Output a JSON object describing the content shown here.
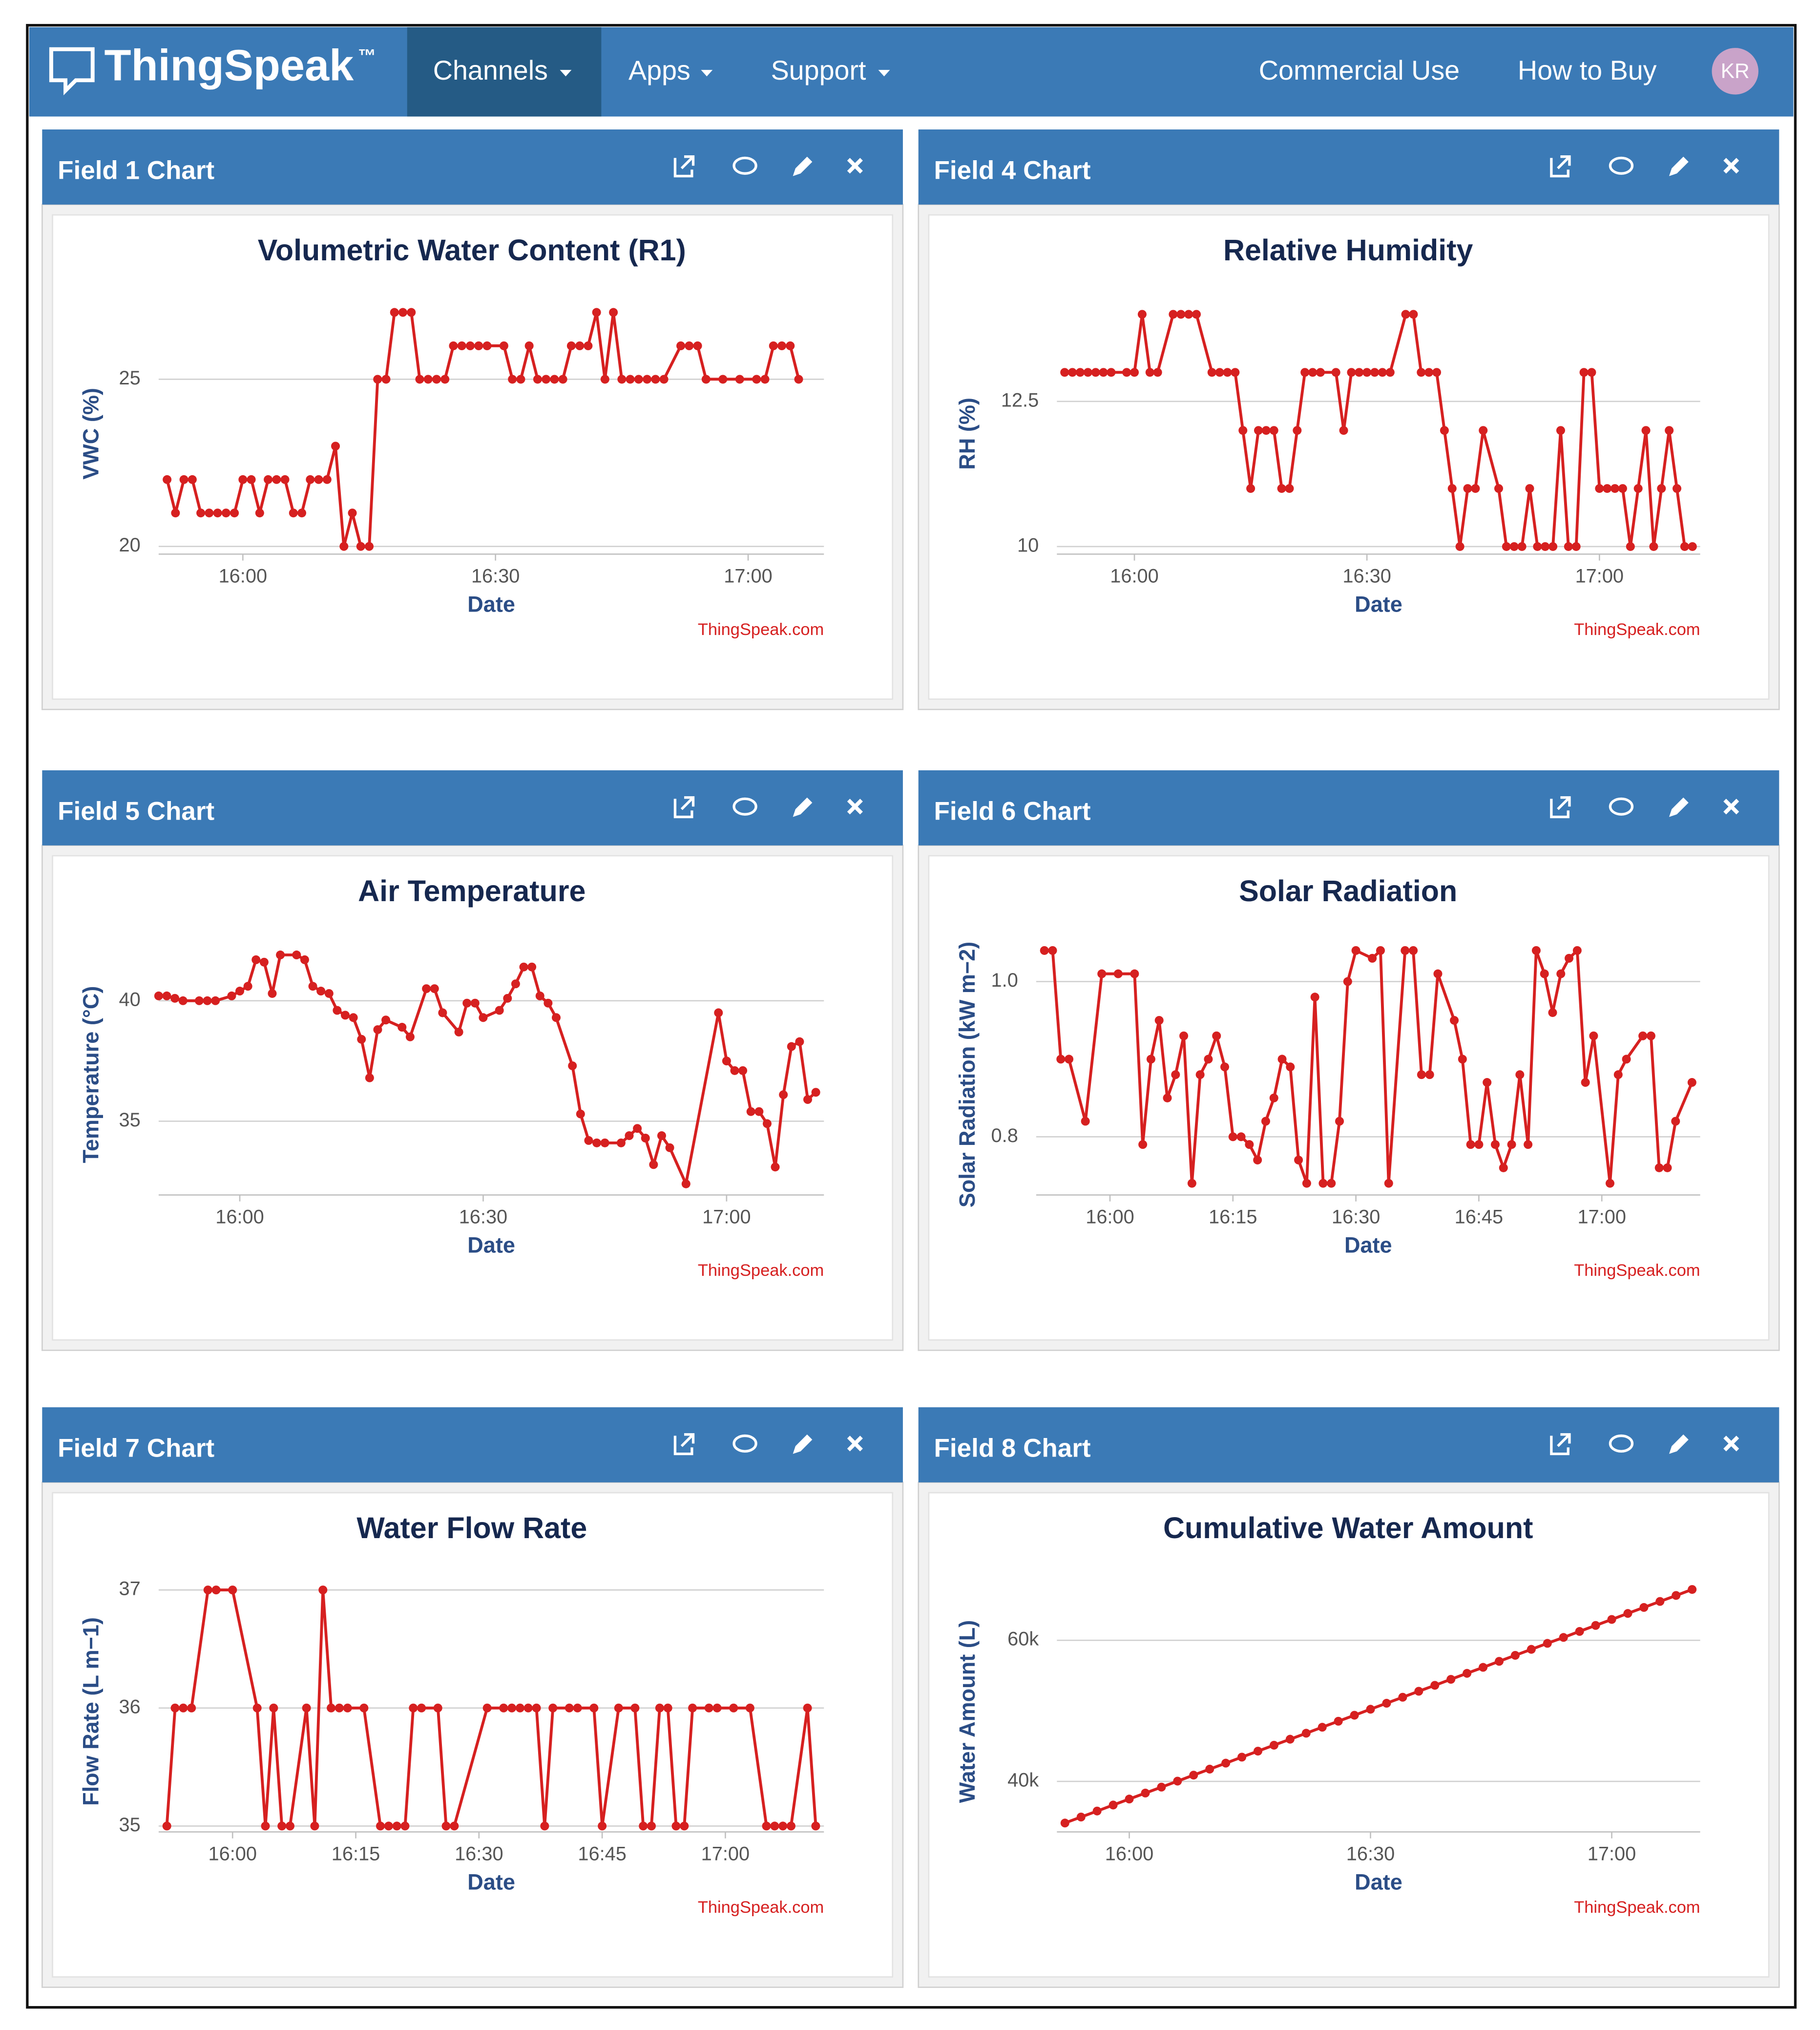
{
  "nav": {
    "brand": "ThingSpeak",
    "trademark": "™",
    "items": [
      "Channels",
      "Apps",
      "Support"
    ],
    "right": [
      "Commercial Use",
      "How to Buy"
    ],
    "avatar": "KR"
  },
  "panels": [
    {
      "header": "Field 1 Chart",
      "chart": {
        "type": "line",
        "title": "Volumetric Water Content (R1)",
        "y_label": "VWC (%)",
        "x_label": "Date",
        "credit": "ThingSpeak.com",
        "color": "#d62020",
        "grid": true,
        "x": [
          "15:51",
          "15:52",
          "15:53",
          "15:54",
          "15:55",
          "15:56",
          "15:57",
          "15:58",
          "15:59",
          "16:00",
          "16:01",
          "16:02",
          "16:03",
          "16:04",
          "16:05",
          "16:06",
          "16:07",
          "16:08",
          "16:09",
          "16:10",
          "16:11",
          "16:12",
          "16:13",
          "16:14",
          "16:15",
          "16:16",
          "16:17",
          "16:18",
          "16:19",
          "16:20",
          "16:21",
          "16:22",
          "16:23",
          "16:24",
          "16:25",
          "16:26",
          "16:27",
          "16:28",
          "16:29",
          "16:31",
          "16:32",
          "16:33",
          "16:34",
          "16:35",
          "16:36",
          "16:37",
          "16:38",
          "16:39",
          "16:40",
          "16:41",
          "16:42",
          "16:43",
          "16:44",
          "16:45",
          "16:46",
          "16:47",
          "16:48",
          "16:49",
          "16:50",
          "16:52",
          "16:53",
          "16:54",
          "16:55",
          "16:57",
          "16:59",
          "17:01",
          "17:02",
          "17:03",
          "17:04",
          "17:05",
          "17:06"
        ],
        "values": [
          22,
          21,
          22,
          22,
          21,
          21,
          21,
          21,
          21,
          22,
          22,
          21,
          22,
          22,
          22,
          21,
          21,
          22,
          22,
          22,
          23,
          20,
          21,
          20,
          20,
          25,
          25,
          27,
          27,
          27,
          25,
          25,
          25,
          25,
          26,
          26,
          26,
          26,
          26,
          26,
          25,
          25,
          26,
          25,
          25,
          25,
          25,
          26,
          26,
          26,
          27,
          25,
          27,
          25,
          25,
          25,
          25,
          25,
          25,
          26,
          26,
          26,
          25,
          25,
          25,
          25,
          25,
          26,
          26,
          26,
          25
        ],
        "xlim": [
          "15:50",
          "17:09"
        ],
        "xticks": [
          "16:00",
          "16:30",
          "17:00"
        ],
        "ylim": [
          19.77,
          27.36
        ],
        "yticks": [
          25,
          20
        ]
      }
    },
    {
      "header": "Field 4 Chart",
      "chart": {
        "type": "line",
        "title": "Relative Humidity",
        "y_label": "RH (%)",
        "x_label": "Date",
        "credit": "ThingSpeak.com",
        "color": "#d62020",
        "grid": true,
        "x": [
          "15:51",
          "15:52",
          "15:53",
          "15:54",
          "15:55",
          "15:56",
          "15:57",
          "15:59",
          "16:00",
          "16:01",
          "16:02",
          "16:03",
          "16:05",
          "16:06",
          "16:07",
          "16:08",
          "16:10",
          "16:11",
          "16:12",
          "16:13",
          "16:14",
          "16:15",
          "16:16",
          "16:17",
          "16:18",
          "16:19",
          "16:20",
          "16:21",
          "16:22",
          "16:23",
          "16:24",
          "16:26",
          "16:27",
          "16:28",
          "16:29",
          "16:30",
          "16:31",
          "16:32",
          "16:33",
          "16:35",
          "16:36",
          "16:37",
          "16:38",
          "16:39",
          "16:40",
          "16:41",
          "16:42",
          "16:43",
          "16:44",
          "16:45",
          "16:47",
          "16:48",
          "16:49",
          "16:50",
          "16:51",
          "16:52",
          "16:53",
          "16:54",
          "16:55",
          "16:56",
          "16:57",
          "16:58",
          "16:59",
          "17:00",
          "17:01",
          "17:02",
          "17:03",
          "17:04",
          "17:05",
          "17:06",
          "17:07",
          "17:08",
          "17:09",
          "17:10",
          "17:11",
          "17:12"
        ],
        "values": [
          13,
          13,
          13,
          13,
          13,
          13,
          13,
          13,
          13,
          14,
          13,
          13,
          14,
          14,
          14,
          14,
          13,
          13,
          13,
          13,
          12,
          11,
          12,
          12,
          12,
          11,
          11,
          12,
          13,
          13,
          13,
          13,
          12,
          13,
          13,
          13,
          13,
          13,
          13,
          14,
          14,
          13,
          13,
          13,
          12,
          11,
          10,
          11,
          11,
          12,
          11,
          10,
          10,
          10,
          11,
          10,
          10,
          10,
          12,
          10,
          10,
          13,
          13,
          11,
          11,
          11,
          11,
          10,
          11,
          12,
          10,
          11,
          12,
          11,
          10,
          10
        ],
        "xlim": [
          "15:50",
          "17:13"
        ],
        "xticks": [
          "16:00",
          "16:30",
          "17:00"
        ],
        "ylim": [
          9.87,
          14.24
        ],
        "yticks": [
          12.5,
          10
        ]
      }
    },
    {
      "header": "Field 5 Chart",
      "chart": {
        "type": "line",
        "title": "Air Temperature",
        "y_label": "Temperature (°C)",
        "x_label": "Date",
        "credit": "ThingSpeak.com",
        "color": "#d62020",
        "grid": true,
        "x": [
          "15:50",
          "15:51",
          "15:52",
          "15:53",
          "15:55",
          "15:56",
          "15:57",
          "15:59",
          "16:00",
          "16:01",
          "16:02",
          "16:03",
          "16:04",
          "16:05",
          "16:07",
          "16:08",
          "16:09",
          "16:10",
          "16:11",
          "16:12",
          "16:13",
          "16:14",
          "16:15",
          "16:16",
          "16:17",
          "16:18",
          "16:20",
          "16:21",
          "16:23",
          "16:24",
          "16:25",
          "16:27",
          "16:28",
          "16:29",
          "16:30",
          "16:32",
          "16:33",
          "16:34",
          "16:35",
          "16:36",
          "16:37",
          "16:38",
          "16:39",
          "16:41",
          "16:42",
          "16:43",
          "16:44",
          "16:45",
          "16:47",
          "16:48",
          "16:49",
          "16:50",
          "16:51",
          "16:52",
          "16:53",
          "16:55",
          "16:59",
          "17:00",
          "17:01",
          "17:02",
          "17:03",
          "17:04",
          "17:05",
          "17:06",
          "17:07",
          "17:08",
          "17:09",
          "17:10",
          "17:11"
        ],
        "values": [
          40.2,
          40.2,
          40.1,
          40.0,
          40.0,
          40.0,
          40.0,
          40.2,
          40.4,
          40.6,
          41.7,
          41.6,
          40.3,
          41.9,
          41.9,
          41.7,
          40.6,
          40.4,
          40.3,
          39.6,
          39.4,
          39.3,
          38.4,
          36.8,
          38.8,
          39.2,
          38.9,
          38.5,
          40.5,
          40.5,
          39.5,
          38.7,
          39.9,
          39.9,
          39.3,
          39.6,
          40.1,
          40.7,
          41.4,
          41.4,
          40.2,
          39.9,
          39.3,
          37.3,
          35.3,
          34.2,
          34.1,
          34.1,
          34.1,
          34.4,
          34.7,
          34.3,
          33.2,
          34.4,
          33.9,
          32.4,
          39.5,
          37.5,
          37.1,
          37.1,
          35.4,
          35.4,
          34.9,
          33.1,
          36.1,
          38.1,
          38.3,
          35.9,
          36.2
        ],
        "xlim": [
          "15:50",
          "17:12"
        ],
        "xticks": [
          "16:00",
          "16:30",
          "17:00"
        ],
        "ylim": [
          31.94,
          42.47
        ],
        "yticks": [
          40,
          35
        ]
      }
    },
    {
      "header": "Field 6 Chart",
      "chart": {
        "type": "line",
        "title": "Solar Radiation",
        "y_label": "Solar Radiation (kW m−2)",
        "x_label": "Date",
        "credit": "ThingSpeak.com",
        "color": "#d62020",
        "grid": true,
        "x": [
          "15:52",
          "15:53",
          "15:54",
          "15:55",
          "15:57",
          "15:59",
          "16:01",
          "16:03",
          "16:04",
          "16:05",
          "16:06",
          "16:07",
          "16:08",
          "16:09",
          "16:10",
          "16:11",
          "16:12",
          "16:13",
          "16:14",
          "16:15",
          "16:16",
          "16:17",
          "16:18",
          "16:19",
          "16:20",
          "16:21",
          "16:22",
          "16:23",
          "16:24",
          "16:25",
          "16:26",
          "16:27",
          "16:28",
          "16:29",
          "16:30",
          "16:32",
          "16:33",
          "16:34",
          "16:36",
          "16:37",
          "16:38",
          "16:39",
          "16:40",
          "16:42",
          "16:43",
          "16:44",
          "16:45",
          "16:46",
          "16:47",
          "16:48",
          "16:49",
          "16:50",
          "16:51",
          "16:52",
          "16:53",
          "16:54",
          "16:55",
          "16:56",
          "16:57",
          "16:58",
          "16:59",
          "17:01",
          "17:02",
          "17:03",
          "17:05",
          "17:06",
          "17:07",
          "17:08",
          "17:09",
          "17:11"
        ],
        "values": [
          1.04,
          1.04,
          0.9,
          0.9,
          0.82,
          1.01,
          1.01,
          1.01,
          0.79,
          0.9,
          0.95,
          0.85,
          0.88,
          0.93,
          0.74,
          0.88,
          0.9,
          0.93,
          0.89,
          0.8,
          0.8,
          0.79,
          0.77,
          0.82,
          0.85,
          0.9,
          0.89,
          0.77,
          0.74,
          0.98,
          0.74,
          0.74,
          0.82,
          1.0,
          1.04,
          1.03,
          1.04,
          0.74,
          1.04,
          1.04,
          0.88,
          0.88,
          1.01,
          0.95,
          0.9,
          0.79,
          0.79,
          0.87,
          0.79,
          0.76,
          0.79,
          0.88,
          0.79,
          1.04,
          1.01,
          0.96,
          1.01,
          1.03,
          1.04,
          0.87,
          0.93,
          0.74,
          0.88,
          0.9,
          0.93,
          0.93,
          0.76,
          0.76,
          0.82,
          0.87
        ],
        "xlim": [
          "15:51",
          "17:12"
        ],
        "xticks": [
          "16:00",
          "16:15",
          "16:30",
          "16:45",
          "17:00"
        ],
        "ylim": [
          0.725,
          1.052
        ],
        "yticks": [
          {
            "value": 1,
            "label": "1.0"
          },
          0.8
        ]
      }
    },
    {
      "header": "Field 7 Chart",
      "chart": {
        "type": "line",
        "title": "Water Flow Rate",
        "y_label": "Flow Rate (L m−1)",
        "x_label": "Date",
        "credit": "ThingSpeak.com",
        "color": "#d62020",
        "grid": true,
        "x": [
          "15:52",
          "15:53",
          "15:54",
          "15:55",
          "15:57",
          "15:58",
          "16:00",
          "16:03",
          "16:04",
          "16:05",
          "16:06",
          "16:07",
          "16:09",
          "16:10",
          "16:11",
          "16:12",
          "16:13",
          "16:14",
          "16:16",
          "16:18",
          "16:19",
          "16:20",
          "16:21",
          "16:22",
          "16:23",
          "16:25",
          "16:26",
          "16:27",
          "16:31",
          "16:33",
          "16:34",
          "16:35",
          "16:36",
          "16:37",
          "16:38",
          "16:39",
          "16:41",
          "16:42",
          "16:44",
          "16:45",
          "16:47",
          "16:49",
          "16:50",
          "16:51",
          "16:52",
          "16:53",
          "16:54",
          "16:55",
          "16:56",
          "16:58",
          "16:59",
          "17:01",
          "17:03",
          "17:05",
          "17:06",
          "17:07",
          "17:08",
          "17:10",
          "17:11"
        ],
        "values": [
          35,
          36,
          36,
          36,
          37,
          37,
          37,
          36,
          35,
          36,
          35,
          35,
          36,
          35,
          37,
          36,
          36,
          36,
          36,
          35,
          35,
          35,
          35,
          36,
          36,
          36,
          35,
          35,
          36,
          36,
          36,
          36,
          36,
          36,
          35,
          36,
          36,
          36,
          36,
          35,
          36,
          36,
          35,
          35,
          36,
          36,
          35,
          35,
          36,
          36,
          36,
          36,
          36,
          35,
          35,
          35,
          35,
          36,
          35
        ],
        "xlim": [
          "15:51",
          "17:12"
        ],
        "xticks": [
          "16:00",
          "16:15",
          "16:30",
          "16:45",
          "17:00"
        ],
        "ylim": [
          34.95,
          37.1
        ],
        "yticks": [
          37,
          36,
          35
        ]
      }
    },
    {
      "header": "Field 8 Chart",
      "chart": {
        "type": "line",
        "title": "Cumulative Water Amount",
        "y_label": "Water Amount (L)",
        "x_label": "Date",
        "credit": "ThingSpeak.com",
        "color": "#d62020",
        "grid": true,
        "x": [
          "15:52",
          "15:54",
          "15:56",
          "15:58",
          "16:00",
          "16:02",
          "16:04",
          "16:06",
          "16:08",
          "16:10",
          "16:12",
          "16:14",
          "16:16",
          "16:18",
          "16:20",
          "16:22",
          "16:24",
          "16:26",
          "16:28",
          "16:30",
          "16:32",
          "16:34",
          "16:36",
          "16:38",
          "16:40",
          "16:42",
          "16:44",
          "16:46",
          "16:48",
          "16:50",
          "16:52",
          "16:54",
          "16:56",
          "16:58",
          "17:00",
          "17:02",
          "17:04",
          "17:06",
          "17:08",
          "17:10"
        ],
        "values": [
          34100,
          34950,
          35800,
          36650,
          37500,
          38350,
          39190,
          40040,
          40890,
          41740,
          42590,
          43440,
          44290,
          45130,
          45980,
          46830,
          47680,
          48530,
          49380,
          50230,
          51080,
          51930,
          52780,
          53620,
          54470,
          55320,
          56170,
          57020,
          57870,
          58720,
          59570,
          60410,
          61260,
          62110,
          62960,
          63810,
          64660,
          65510,
          66360,
          67210
        ],
        "xlim": [
          "15:51",
          "17:11"
        ],
        "xticks": [
          "16:00",
          "16:30",
          "17:00"
        ],
        "ylim": [
          32840,
          68810
        ],
        "yticks": [
          {
            "value": 60000,
            "label": "60k"
          },
          {
            "value": 40000,
            "label": "40k"
          }
        ]
      }
    }
  ]
}
